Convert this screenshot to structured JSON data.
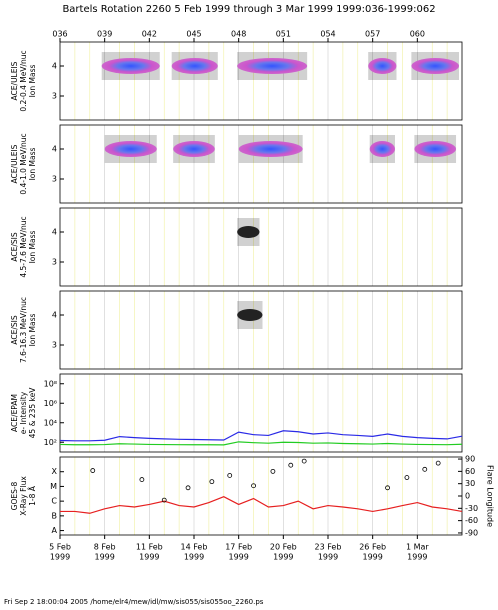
{
  "title": "Bartels Rotation 2260    5 Feb 1999 through 3 Mar 1999    1999:036-1999:062",
  "footer": "Fri Sep  2 18:00:04 2005    /home/elr4/mew/idl/mw/sis055/sis055oo_2260.ps",
  "year_label": "1999",
  "chart_data": [
    {
      "type": "mass_scatter",
      "ylabel": [
        "ACE/ULEIS",
        "0.2-0.4 MeV/nuc",
        "Ion Mass"
      ],
      "xlim": [
        36,
        63
      ],
      "ylim": [
        2.2,
        4.8
      ],
      "yticks": [
        3,
        4
      ],
      "xticks": [
        {
          "value": 36,
          "label": "036"
        },
        {
          "value": 39,
          "label": "039"
        },
        {
          "value": 42,
          "label": "042"
        },
        {
          "value": 45,
          "label": "045"
        },
        {
          "value": 48,
          "label": "048"
        },
        {
          "value": 51,
          "label": "051"
        },
        {
          "value": 54,
          "label": "054"
        },
        {
          "value": 57,
          "label": "057"
        },
        {
          "value": 60,
          "label": "060"
        }
      ],
      "blobs": [
        {
          "start": 38.8,
          "end": 42.7,
          "mass": 4
        },
        {
          "start": 43.5,
          "end": 46.6,
          "mass": 4
        },
        {
          "start": 47.9,
          "end": 52.6,
          "mass": 4
        },
        {
          "start": 56.7,
          "end": 58.6,
          "mass": 4
        },
        {
          "start": 59.6,
          "end": 62.8,
          "mass": 4
        }
      ]
    },
    {
      "type": "mass_scatter",
      "ylabel": [
        "ACE/ULEIS",
        "0.4-1.0 MeV/nuc",
        "Ion Mass"
      ],
      "xlim": [
        36,
        63
      ],
      "ylim": [
        2.2,
        4.8
      ],
      "yticks": [
        3,
        4
      ],
      "blobs": [
        {
          "start": 39.0,
          "end": 42.5,
          "mass": 4
        },
        {
          "start": 43.6,
          "end": 46.4,
          "mass": 4
        },
        {
          "start": 48.0,
          "end": 52.3,
          "mass": 4
        },
        {
          "start": 56.8,
          "end": 58.5,
          "mass": 4
        },
        {
          "start": 59.8,
          "end": 62.6,
          "mass": 4
        }
      ]
    },
    {
      "type": "mass_scatter",
      "ylabel": [
        "ACE/SIS",
        "4.5-7.6 MeV/nuc",
        "Ion Mass"
      ],
      "xlim": [
        36,
        63
      ],
      "ylim": [
        2.2,
        4.8
      ],
      "yticks": [
        3,
        4
      ],
      "blobs": [
        {
          "start": 47.9,
          "end": 49.4,
          "mass": 4
        }
      ]
    },
    {
      "type": "mass_scatter",
      "ylabel": [
        "ACE/SIS",
        "7.6-16.3 MeV/nuc",
        "Ion Mass"
      ],
      "xlim": [
        36,
        63
      ],
      "ylim": [
        2.2,
        4.8
      ],
      "yticks": [
        3,
        4
      ],
      "blobs": [
        {
          "start": 47.9,
          "end": 49.6,
          "mass": 4
        }
      ]
    },
    {
      "type": "log_line",
      "ylabel": [
        "ACE/EPAM",
        "e- Intensity",
        "45 & 235 keV"
      ],
      "xlim": [
        36,
        63
      ],
      "ylim": [
        10,
        1000000000
      ],
      "yticks": [
        {
          "value": 100,
          "label": "10²"
        },
        {
          "value": 10000,
          "label": "10⁴"
        },
        {
          "value": 1000000,
          "label": "10⁶"
        },
        {
          "value": 100000000,
          "label": "10⁸"
        }
      ],
      "x": [
        36,
        37,
        38,
        39,
        40,
        41,
        42,
        43,
        44,
        45,
        46,
        47,
        48,
        49,
        50,
        51,
        52,
        53,
        54,
        55,
        56,
        57,
        58,
        59,
        60,
        61,
        62,
        63
      ],
      "series": [
        {
          "name": "45 keV",
          "color": "#2a2ae6",
          "values": [
            150,
            140,
            140,
            160,
            380,
            300,
            250,
            220,
            200,
            190,
            180,
            170,
            1100,
            600,
            500,
            1500,
            1200,
            700,
            900,
            600,
            500,
            400,
            700,
            400,
            300,
            250,
            220,
            420
          ]
        },
        {
          "name": "235 keV",
          "color": "#22cc22",
          "values": [
            60,
            55,
            55,
            58,
            70,
            65,
            60,
            58,
            56,
            55,
            55,
            54,
            110,
            90,
            80,
            100,
            95,
            80,
            85,
            75,
            70,
            65,
            75,
            65,
            60,
            58,
            56,
            62
          ]
        }
      ]
    },
    {
      "type": "xray",
      "ylabel": [
        "GOES-8",
        "X-Ray Flux",
        "1-8 Å"
      ],
      "y2label": "Flare Longitude",
      "xlim": [
        36,
        63
      ],
      "ylim": [
        5e-09,
        0.001
      ],
      "yticks": [
        {
          "value": 1e-08,
          "label": "A"
        },
        {
          "value": 1e-07,
          "label": "B"
        },
        {
          "value": 1e-06,
          "label": "C"
        },
        {
          "value": 1e-05,
          "label": "M"
        },
        {
          "value": 0.0001,
          "label": "X"
        }
      ],
      "y2lim": [
        -95,
        95
      ],
      "y2ticks": [
        -90,
        -60,
        -30,
        0,
        30,
        60,
        90
      ],
      "xticks": [
        {
          "value": 36,
          "label": "5 Feb"
        },
        {
          "value": 39,
          "label": "8 Feb"
        },
        {
          "value": 42,
          "label": "11 Feb"
        },
        {
          "value": 45,
          "label": "14 Feb"
        },
        {
          "value": 48,
          "label": "17 Feb"
        },
        {
          "value": 51,
          "label": "20 Feb"
        },
        {
          "value": 54,
          "label": "23 Feb"
        },
        {
          "value": 57,
          "label": "26 Feb"
        },
        {
          "value": 60,
          "label": "1 Mar"
        }
      ],
      "x": [
        36,
        37,
        38,
        39,
        40,
        41,
        42,
        43,
        44,
        45,
        46,
        47,
        48,
        49,
        50,
        51,
        52,
        53,
        54,
        55,
        56,
        57,
        58,
        59,
        60,
        61,
        62,
        63
      ],
      "series": [
        {
          "name": "X-Ray Flux",
          "color": "#e62020",
          "values": [
            2e-07,
            2e-07,
            1.5e-07,
            3e-07,
            5e-07,
            4e-07,
            6e-07,
            1e-06,
            5e-07,
            4e-07,
            8e-07,
            2e-06,
            6e-07,
            1.5e-06,
            4e-07,
            5e-07,
            1e-06,
            3e-07,
            5e-07,
            4e-07,
            3e-07,
            2e-07,
            3e-07,
            5e-07,
            8e-07,
            4e-07,
            3e-07,
            2e-07
          ]
        }
      ],
      "flares": {
        "x": [
          38.2,
          41.5,
          43.0,
          44.6,
          46.2,
          47.4,
          49.0,
          50.3,
          51.5,
          52.4,
          58.0,
          59.3,
          60.5,
          61.4
        ],
        "longitude": [
          62,
          40,
          -10,
          20,
          35,
          50,
          25,
          60,
          75,
          85,
          20,
          45,
          65,
          80
        ]
      }
    }
  ]
}
